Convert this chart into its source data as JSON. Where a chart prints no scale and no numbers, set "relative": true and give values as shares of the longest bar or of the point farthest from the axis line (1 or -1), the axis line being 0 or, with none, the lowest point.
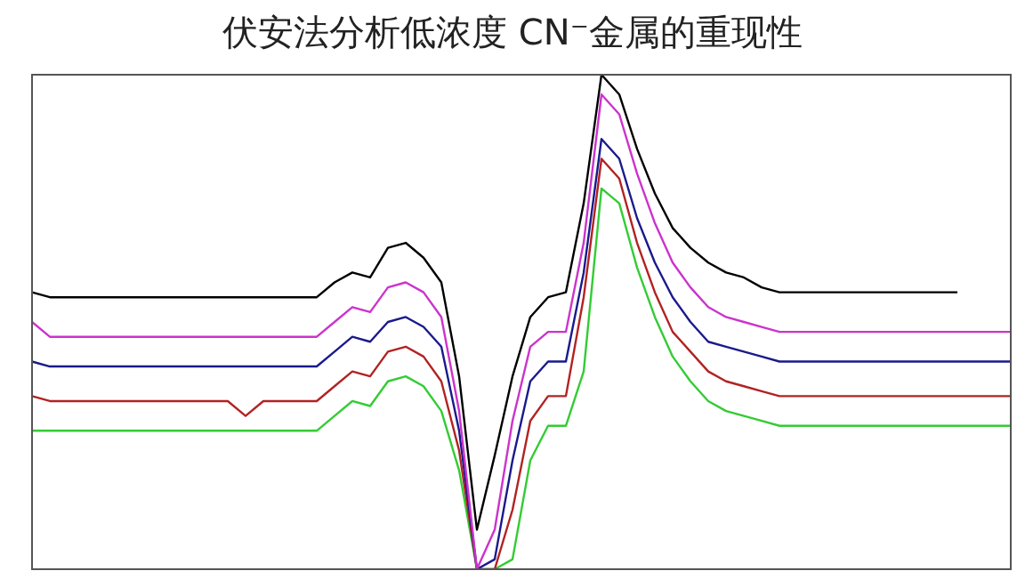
{
  "chart_data": {
    "type": "line",
    "title": "伏安法分析低浓度 CN⁻金属的重现性",
    "relative": true,
    "tick_labels": false,
    "grid": false,
    "legend": false,
    "marker": "none",
    "line_style": "solid",
    "categories": [
      null,
      null,
      null,
      null,
      null,
      null,
      null,
      null,
      null,
      null,
      null,
      null,
      null,
      null,
      null,
      null,
      null,
      null,
      null,
      null,
      null,
      null,
      null,
      null,
      null,
      null,
      null,
      null,
      null,
      null,
      null,
      null,
      null,
      null,
      null,
      null,
      null,
      null,
      null,
      null,
      null,
      null,
      null,
      null,
      null,
      null,
      null,
      null,
      null,
      null,
      null,
      null,
      null,
      null,
      null,
      null
    ],
    "series": [
      {
        "color": "#000000",
        "values": [
          0.56,
          0.55,
          0.55,
          0.55,
          0.55,
          0.55,
          0.55,
          0.55,
          0.55,
          0.55,
          0.55,
          0.55,
          0.55,
          0.55,
          0.55,
          0.55,
          0.55,
          0.58,
          0.6,
          0.59,
          0.65,
          0.66,
          0.63,
          0.58,
          0.39,
          0.08,
          0.23,
          0.39,
          0.51,
          0.55,
          0.56,
          0.74,
          1.0,
          0.96,
          0.85,
          0.76,
          0.69,
          0.65,
          0.62,
          0.6,
          0.59,
          0.57,
          0.56,
          0.56,
          0.56,
          0.56,
          0.56,
          0.56,
          0.56,
          0.56,
          0.56,
          0.56,
          0.56,
          null,
          null,
          null
        ]
      },
      {
        "color": "#cc33cc",
        "values": [
          0.5,
          0.47,
          0.47,
          0.47,
          0.47,
          0.47,
          0.47,
          0.47,
          0.47,
          0.47,
          0.47,
          0.47,
          0.47,
          0.47,
          0.47,
          0.47,
          0.47,
          0.5,
          0.53,
          0.52,
          0.57,
          0.58,
          0.56,
          0.51,
          0.32,
          0.0,
          0.08,
          0.3,
          0.45,
          0.48,
          0.48,
          0.66,
          0.96,
          0.92,
          0.8,
          0.7,
          0.62,
          0.57,
          0.53,
          0.51,
          0.5,
          0.49,
          0.48,
          0.48,
          0.48,
          0.48,
          0.48,
          0.48,
          0.48,
          0.48,
          0.48,
          0.48,
          0.48,
          0.48,
          0.48,
          0.48
        ]
      },
      {
        "color": "#1a1a8c",
        "values": [
          0.42,
          0.41,
          0.41,
          0.41,
          0.41,
          0.41,
          0.41,
          0.41,
          0.41,
          0.41,
          0.41,
          0.41,
          0.41,
          0.41,
          0.41,
          0.41,
          0.41,
          0.44,
          0.47,
          0.46,
          0.5,
          0.51,
          0.49,
          0.45,
          0.28,
          0.0,
          0.02,
          0.22,
          0.38,
          0.42,
          0.42,
          0.6,
          0.87,
          0.83,
          0.71,
          0.62,
          0.55,
          0.5,
          0.46,
          0.45,
          0.44,
          0.43,
          0.42,
          0.42,
          0.42,
          0.42,
          0.42,
          0.42,
          0.42,
          0.42,
          0.42,
          0.42,
          0.42,
          0.42,
          0.42,
          0.42
        ]
      },
      {
        "color": "#b22222",
        "values": [
          0.35,
          0.34,
          0.34,
          0.34,
          0.34,
          0.34,
          0.34,
          0.34,
          0.34,
          0.34,
          0.34,
          0.34,
          0.31,
          0.34,
          0.34,
          0.34,
          0.34,
          0.37,
          0.4,
          0.39,
          0.44,
          0.45,
          0.43,
          0.38,
          0.24,
          0.0,
          0.0,
          0.12,
          0.3,
          0.35,
          0.35,
          0.55,
          0.83,
          0.79,
          0.66,
          0.56,
          0.48,
          0.44,
          0.4,
          0.38,
          0.37,
          0.36,
          0.35,
          0.35,
          0.35,
          0.35,
          0.35,
          0.35,
          0.35,
          0.35,
          0.35,
          0.35,
          0.35,
          0.35,
          0.35,
          0.35
        ]
      },
      {
        "color": "#33cc33",
        "values": [
          0.28,
          0.28,
          0.28,
          0.28,
          0.28,
          0.28,
          0.28,
          0.28,
          0.28,
          0.28,
          0.28,
          0.28,
          0.28,
          0.28,
          0.28,
          0.28,
          0.28,
          0.31,
          0.34,
          0.33,
          0.38,
          0.39,
          0.37,
          0.32,
          0.2,
          0.0,
          0.0,
          0.02,
          0.22,
          0.29,
          0.29,
          0.4,
          0.77,
          0.74,
          0.61,
          0.51,
          0.43,
          0.38,
          0.34,
          0.32,
          0.31,
          0.3,
          0.29,
          0.29,
          0.29,
          0.29,
          0.29,
          0.29,
          0.29,
          0.29,
          0.29,
          0.29,
          0.29,
          0.29,
          0.29,
          0.29
        ]
      }
    ]
  }
}
